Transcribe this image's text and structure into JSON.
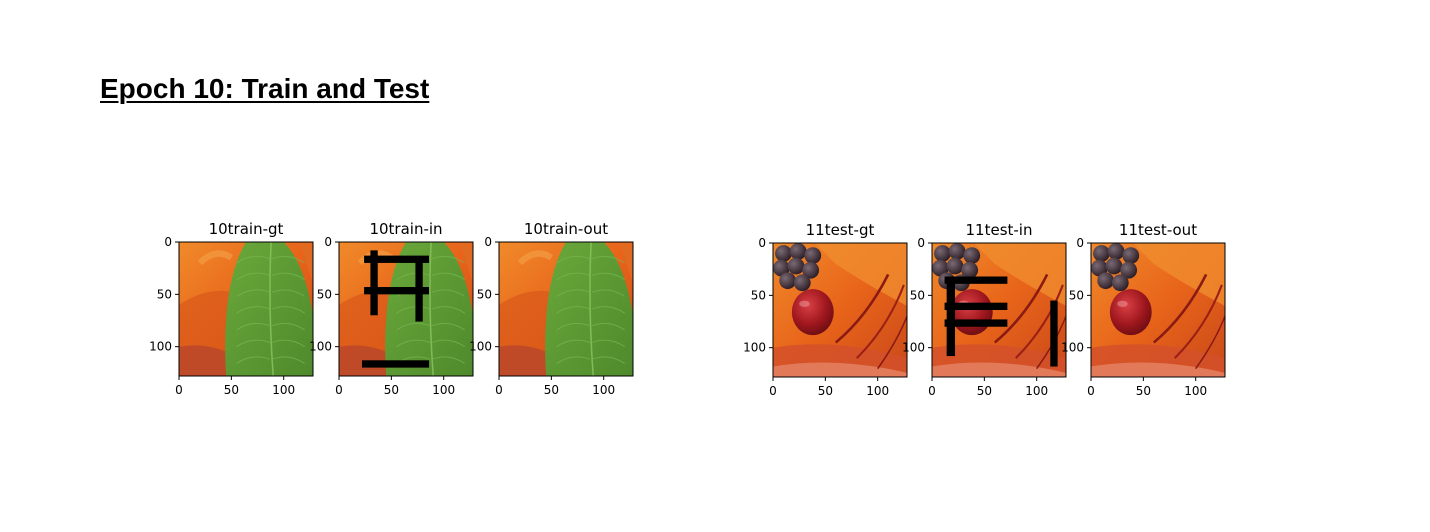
{
  "page": {
    "title": "Epoch 10: Train and Test"
  },
  "panels": [
    {
      "title": "10train-gt",
      "scene": "leaf",
      "mask": "none"
    },
    {
      "title": "10train-in",
      "scene": "leaf",
      "mask": "train"
    },
    {
      "title": "10train-out",
      "scene": "leaf",
      "mask": "none"
    },
    {
      "title": "11test-gt",
      "scene": "fruit",
      "mask": "none"
    },
    {
      "title": "11test-in",
      "scene": "fruit",
      "mask": "test"
    },
    {
      "title": "11test-out",
      "scene": "fruit",
      "mask": "none"
    }
  ],
  "axes": {
    "x_ticks": [
      "0",
      "50",
      "100"
    ],
    "y_ticks": [
      "0",
      "50",
      "100"
    ],
    "x_tick_values": [
      0,
      50,
      100
    ],
    "y_tick_values": [
      0,
      50,
      100
    ],
    "image_size": 128
  },
  "colors": {
    "background": "#ffffff",
    "mask": "#000000",
    "orange": "#e8641a",
    "leaf": "#5f9a35",
    "cherry": "#a0171e"
  }
}
